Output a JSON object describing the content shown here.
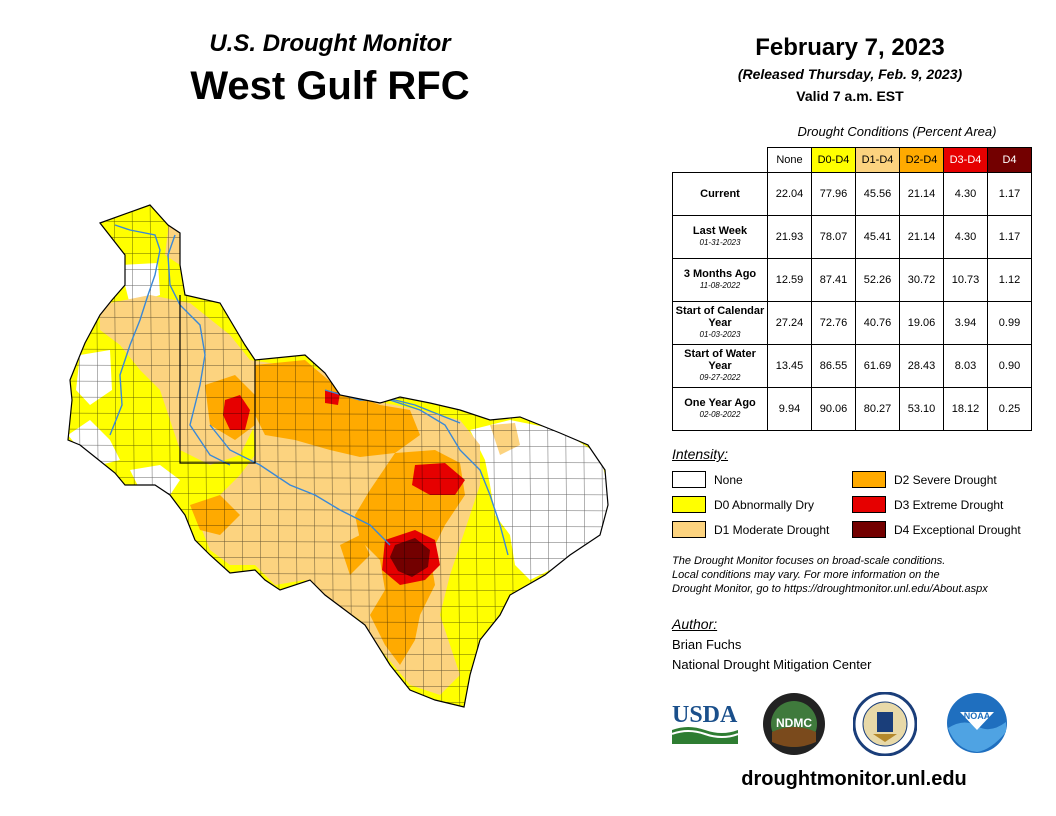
{
  "header": {
    "subtitle": "U.S. Drought Monitor",
    "title": "West Gulf RFC",
    "date": "February 7, 2023",
    "released": "(Released Thursday, Feb. 9, 2023)",
    "valid": "Valid 7 a.m. EST"
  },
  "conditions": {
    "title": "Drought Conditions (Percent Area)",
    "columns": [
      {
        "label": "None",
        "color": "#ffffff",
        "text": "#000000"
      },
      {
        "label": "D0-D4",
        "color": "#ffff00",
        "text": "#000000"
      },
      {
        "label": "D1-D4",
        "color": "#fcd37f",
        "text": "#000000"
      },
      {
        "label": "D2-D4",
        "color": "#ffaa00",
        "text": "#000000"
      },
      {
        "label": "D3-D4",
        "color": "#e60000",
        "text": "#ffffff"
      },
      {
        "label": "D4",
        "color": "#730000",
        "text": "#ffffff"
      }
    ],
    "rows": [
      {
        "label": "Current",
        "date": "",
        "values": [
          "22.04",
          "77.96",
          "45.56",
          "21.14",
          "4.30",
          "1.17"
        ]
      },
      {
        "label": "Last Week",
        "date": "01-31-2023",
        "values": [
          "21.93",
          "78.07",
          "45.41",
          "21.14",
          "4.30",
          "1.17"
        ]
      },
      {
        "label": "3 Months Ago",
        "date": "11-08-2022",
        "values": [
          "12.59",
          "87.41",
          "52.26",
          "30.72",
          "10.73",
          "1.12"
        ]
      },
      {
        "label": "Start of Calendar Year",
        "date": "01-03-2023",
        "values": [
          "27.24",
          "72.76",
          "40.76",
          "19.06",
          "3.94",
          "0.99"
        ]
      },
      {
        "label": "Start of Water Year",
        "date": "09-27-2022",
        "values": [
          "13.45",
          "86.55",
          "61.69",
          "28.43",
          "8.03",
          "0.90"
        ]
      },
      {
        "label": "One Year Ago",
        "date": "02-08-2022",
        "values": [
          "9.94",
          "90.06",
          "80.27",
          "53.10",
          "18.12",
          "0.25"
        ]
      }
    ]
  },
  "legend": {
    "title": "Intensity:",
    "items": [
      {
        "label": "None",
        "color": "#ffffff"
      },
      {
        "label": "D0 Abnormally Dry",
        "color": "#ffff00"
      },
      {
        "label": "D1 Moderate Drought",
        "color": "#fcd37f"
      },
      {
        "label": "D2 Severe Drought",
        "color": "#ffaa00"
      },
      {
        "label": "D3 Extreme Drought",
        "color": "#e60000"
      },
      {
        "label": "D4 Exceptional Drought",
        "color": "#730000"
      }
    ]
  },
  "note": {
    "line1": "The Drought Monitor focuses on broad-scale conditions.",
    "line2": "Local conditions may vary. For more information on the",
    "line3": "Drought Monitor, go to https://droughtmonitor.unl.edu/About.aspx"
  },
  "author": {
    "title": "Author:",
    "name": "Brian Fuchs",
    "org": "National Drought Mitigation Center"
  },
  "logos": {
    "usda": "USDA",
    "ndmc": "NDMC",
    "noaa": "NOAA",
    "usda_color": "#1a4f8b",
    "ndmc_color": "#3f7a3c",
    "noaa_color": "#1f6fbf"
  },
  "footer": {
    "url": "droughtmonitor.unl.edu"
  },
  "map": {
    "river_color": "#3a88d6",
    "border_color": "#000000"
  }
}
